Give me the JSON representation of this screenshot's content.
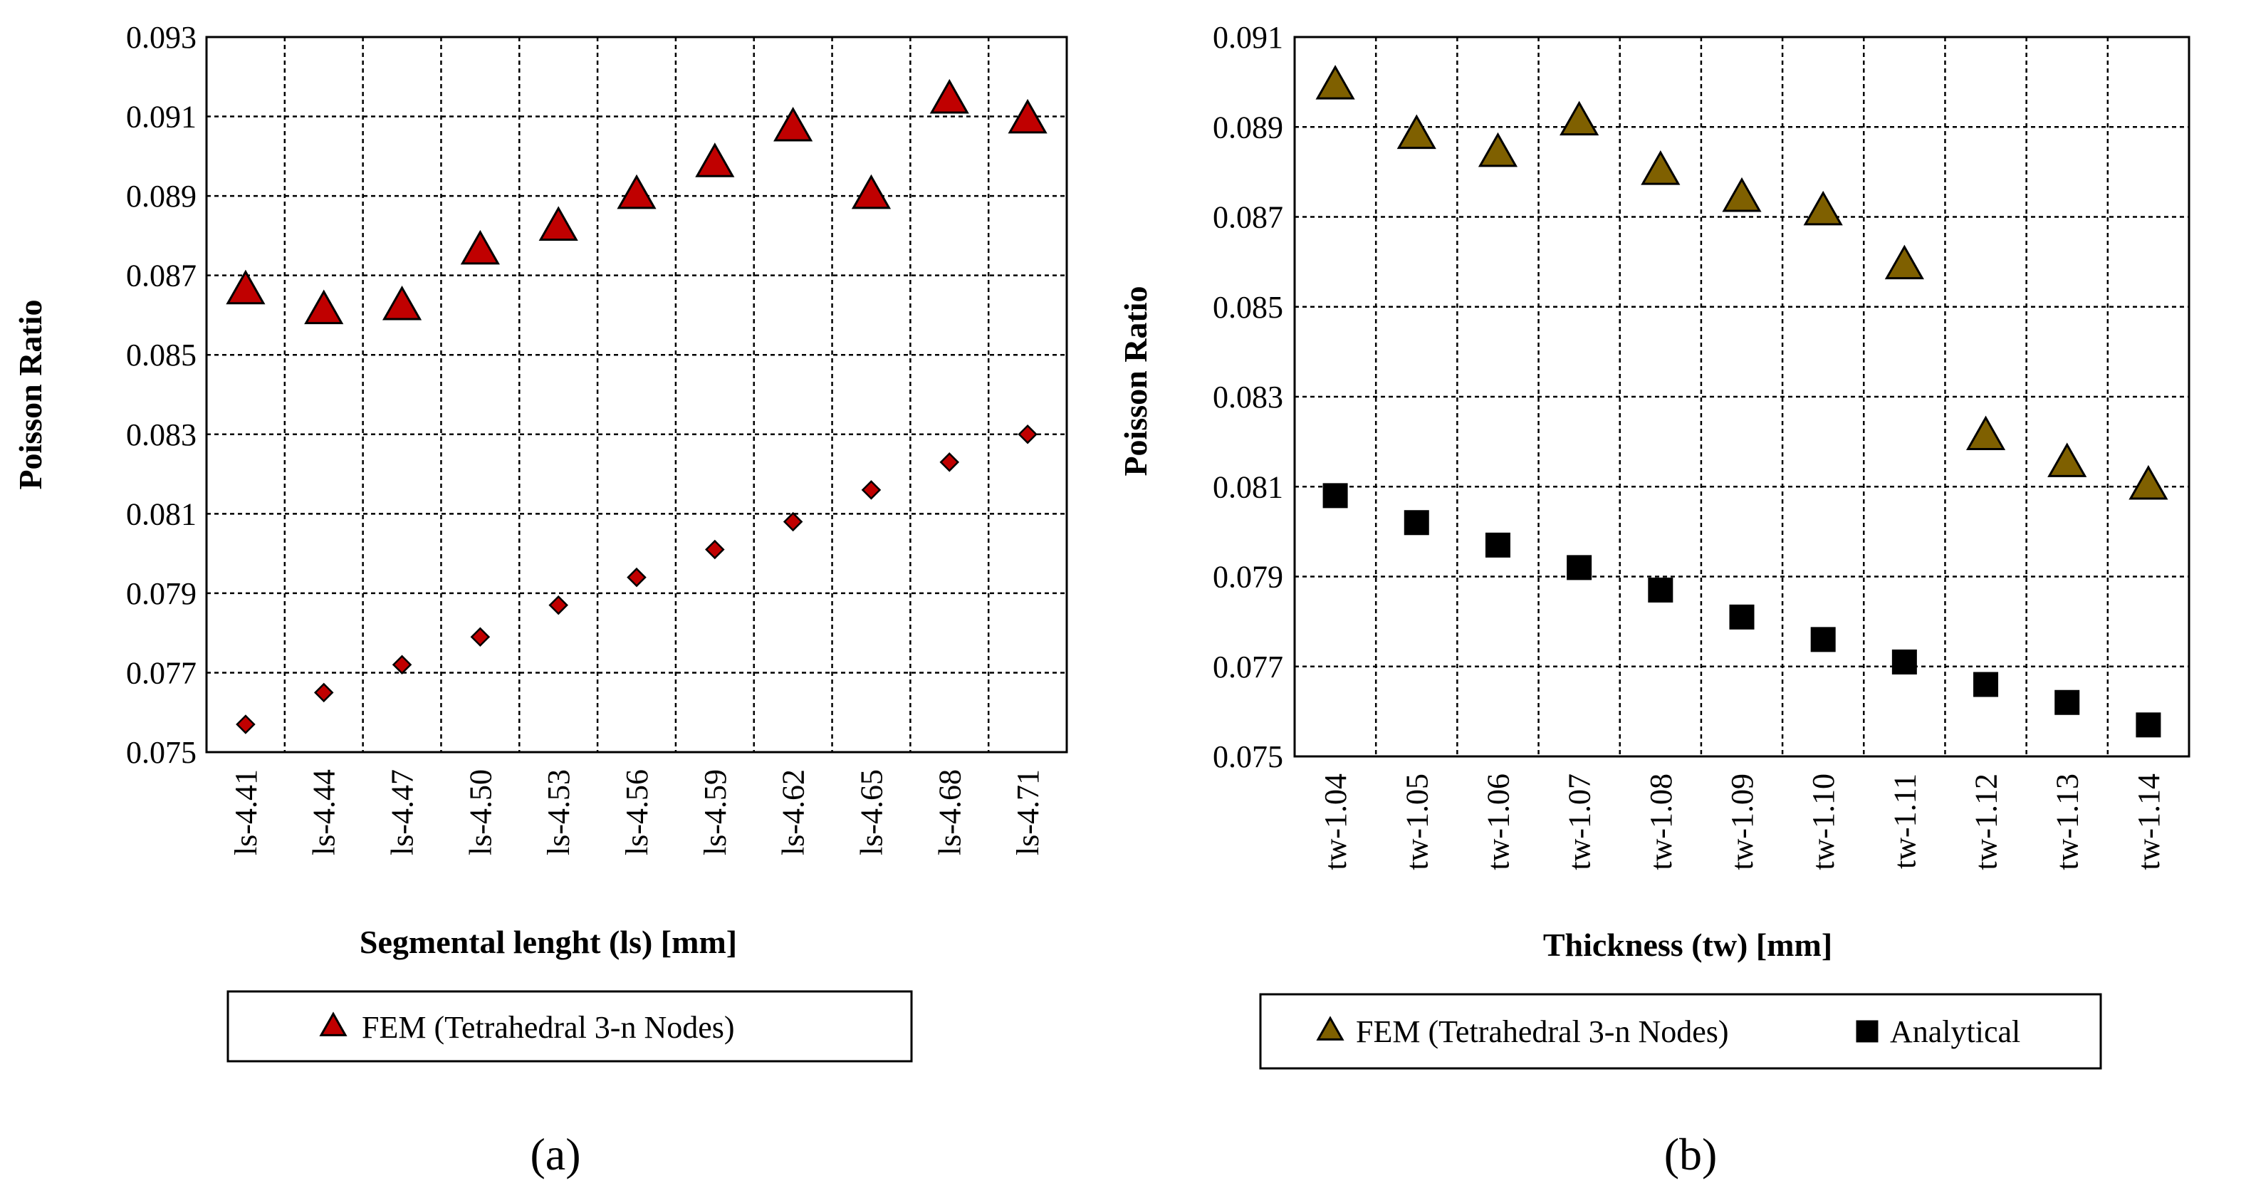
{
  "chart_data": [
    {
      "type": "scatter",
      "panel_label": "(a)",
      "xlabel": "Segmental lenght (ls)  [mm]",
      "ylabel": "Poisson Ratio",
      "ylim": [
        0.075,
        0.093
      ],
      "y_ticks": [
        "0.075",
        "0.077",
        "0.079",
        "0.081",
        "0.083",
        "0.085",
        "0.087",
        "0.089",
        "0.091",
        "0.093"
      ],
      "categories": [
        "ls-4.41",
        "ls-4.44",
        "ls-4.47",
        "ls-4.50",
        "ls-4.53",
        "ls-4.56",
        "ls-4.59",
        "ls-4.62",
        "ls-4.65",
        "ls-4.68",
        "ls-4.71"
      ],
      "grid": true,
      "legend_position": "bottom",
      "series": [
        {
          "name": "FEM (Tetrahedral 3-n Nodes)",
          "marker": "triangle",
          "color": "#C00000",
          "in_legend": true,
          "values": [
            0.0866,
            0.0861,
            0.0862,
            0.0876,
            0.0882,
            0.089,
            0.0898,
            0.0907,
            0.089,
            0.0914,
            0.0909
          ]
        },
        {
          "name": "",
          "marker": "diamond",
          "color": "#C00000",
          "in_legend": false,
          "values": [
            0.0757,
            0.0765,
            0.0772,
            0.0779,
            0.0787,
            0.0794,
            0.0801,
            0.0808,
            0.0816,
            0.0823,
            0.083
          ]
        }
      ]
    },
    {
      "type": "scatter",
      "panel_label": "(b)",
      "xlabel": "Thickness (tw)  [mm]",
      "ylabel": "Poisson Ratio",
      "ylim": [
        0.075,
        0.091
      ],
      "y_ticks": [
        "0.075",
        "0.077",
        "0.079",
        "0.081",
        "0.083",
        "0.085",
        "0.087",
        "0.089",
        "0.091"
      ],
      "categories": [
        "tw-1.04",
        "tw-1.05",
        "tw-1.06",
        "tw-1.07",
        "tw-1.08",
        "tw-1.09",
        "tw-1.10",
        "tw-1.11",
        "tw-1.12",
        "tw-1.13",
        "tw-1.14"
      ],
      "grid": true,
      "legend_position": "bottom",
      "series": [
        {
          "name": "FEM (Tetrahedral 3-n Nodes)",
          "marker": "triangle",
          "color": "#7F6000",
          "in_legend": true,
          "values": [
            0.0899,
            0.0888,
            0.0884,
            0.0891,
            0.088,
            0.0874,
            0.0871,
            0.0859,
            0.0821,
            0.0815,
            0.081
          ]
        },
        {
          "name": "Analytical",
          "marker": "square",
          "color": "#000000",
          "in_legend": true,
          "values": [
            0.0808,
            0.0802,
            0.0797,
            0.0792,
            0.0787,
            0.0781,
            0.0776,
            0.0771,
            0.0766,
            0.0762,
            0.0757
          ]
        }
      ]
    }
  ]
}
